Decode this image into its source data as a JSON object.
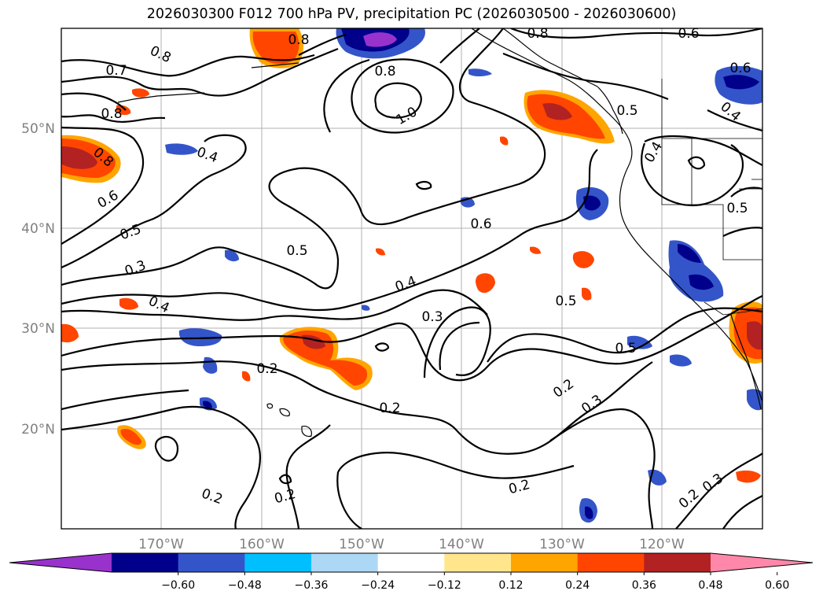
{
  "title": "2026030300 F012 700 hPa PV, precipitation PC (2026030500 - 2026030600)",
  "lat_labels": [
    "50°N",
    "40°N",
    "30°N",
    "20°N"
  ],
  "lon_labels": [
    "170°W",
    "160°W",
    "150°W",
    "140°W",
    "130°W",
    "120°W"
  ],
  "contour_labels": [
    "0.7",
    "0.8",
    "0.8",
    "0.8",
    "0.8",
    "0.6",
    "0.8",
    "0.8",
    "0.5",
    "0.6",
    "0.4",
    "1.0",
    "0.5",
    "0.4",
    "0.4",
    "0.6",
    "0.5",
    "0.5",
    "0.3",
    "0.5",
    "0.4",
    "0.4",
    "0.3",
    "0.5",
    "0.3",
    "0.2",
    "0.2",
    "0.2",
    "0.3",
    "0.2",
    "0.2",
    "0.2",
    "0.2",
    "0.3",
    "0.6",
    "0.5"
  ],
  "colorbar": {
    "ticks": [
      "−0.60",
      "−0.48",
      "−0.36",
      "−0.24",
      "−0.12",
      "0.12",
      "0.24",
      "0.36",
      "0.48",
      "0.60"
    ],
    "colors": [
      "#9932CC",
      "#00008B",
      "#3455C9",
      "#00BFFF",
      "#ADD8F5",
      "#FFFFFF",
      "#FFE68C",
      "#FFA500",
      "#FF4500",
      "#B22222",
      "#FF88AA"
    ]
  }
}
